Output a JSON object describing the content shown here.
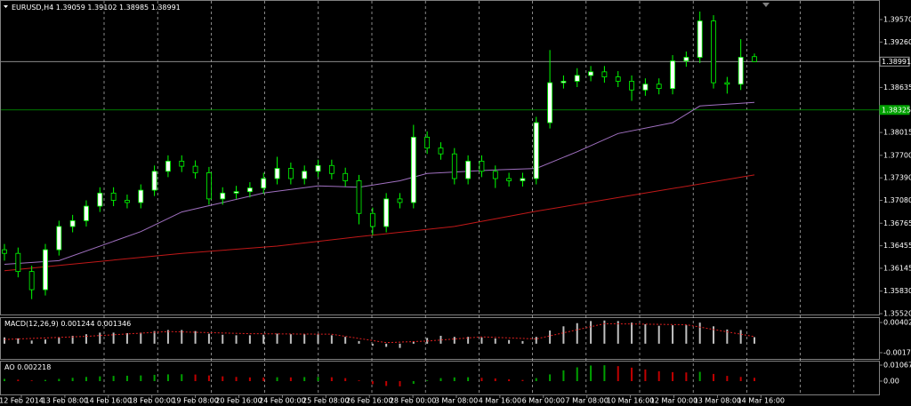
{
  "chart_data": {
    "type": "candlestick",
    "symbol": "EURUSD,H4",
    "header_values": [
      1.39059,
      1.39102,
      1.38985,
      1.38991
    ],
    "open": [
      1.364,
      1.3635,
      1.361,
      1.3585,
      1.364,
      1.3672,
      1.368,
      1.37,
      1.3718,
      1.3708,
      1.3705,
      1.3722,
      1.3748,
      1.3762,
      1.3755,
      1.3746,
      1.371,
      1.3718,
      1.372,
      1.3725,
      1.3738,
      1.3752,
      1.3738,
      1.3748,
      1.3756,
      1.3745,
      1.3735,
      1.369,
      1.3672,
      1.371,
      1.3705,
      1.3795,
      1.378,
      1.3772,
      1.3738,
      1.3762,
      1.3748,
      1.3738,
      1.3735,
      1.3738,
      1.3815,
      1.387,
      1.3872,
      1.388,
      1.3885,
      1.3878,
      1.3872,
      1.386,
      1.3868,
      1.3862,
      1.39,
      1.3905,
      1.3955,
      1.387,
      1.3868,
      1.39059
    ],
    "high": [
      1.3648,
      1.3643,
      1.3618,
      1.3648,
      1.368,
      1.3688,
      1.3708,
      1.3726,
      1.3726,
      1.3716,
      1.373,
      1.3756,
      1.377,
      1.377,
      1.3763,
      1.3754,
      1.3726,
      1.3728,
      1.3733,
      1.3746,
      1.3768,
      1.376,
      1.3756,
      1.3764,
      1.3764,
      1.3753,
      1.3743,
      1.3698,
      1.3718,
      1.3718,
      1.3812,
      1.3803,
      1.3788,
      1.378,
      1.377,
      1.377,
      1.3756,
      1.3746,
      1.3746,
      1.3823,
      1.3915,
      1.388,
      1.389,
      1.3893,
      1.3893,
      1.3886,
      1.388,
      1.3876,
      1.3876,
      1.3908,
      1.3913,
      1.3968,
      1.3963,
      1.3878,
      1.393,
      1.39102
    ],
    "low": [
      1.3625,
      1.3602,
      1.3572,
      1.3577,
      1.3632,
      1.3664,
      1.3672,
      1.3692,
      1.37,
      1.3697,
      1.3697,
      1.3714,
      1.374,
      1.3747,
      1.3738,
      1.3702,
      1.3702,
      1.371,
      1.3712,
      1.3717,
      1.373,
      1.373,
      1.373,
      1.374,
      1.3737,
      1.3727,
      1.3675,
      1.366,
      1.3664,
      1.3697,
      1.3697,
      1.3772,
      1.3764,
      1.373,
      1.373,
      1.374,
      1.3725,
      1.3727,
      1.3727,
      1.373,
      1.3807,
      1.3862,
      1.3864,
      1.3872,
      1.387,
      1.3864,
      1.3845,
      1.3852,
      1.3854,
      1.3854,
      1.3892,
      1.3897,
      1.3862,
      1.3855,
      1.386,
      1.38985
    ],
    "close": [
      1.3635,
      1.361,
      1.3585,
      1.364,
      1.3672,
      1.368,
      1.37,
      1.3718,
      1.3708,
      1.3705,
      1.3722,
      1.3748,
      1.3762,
      1.3755,
      1.3746,
      1.371,
      1.3718,
      1.372,
      1.3725,
      1.3738,
      1.3752,
      1.3738,
      1.3748,
      1.3756,
      1.3745,
      1.3735,
      1.369,
      1.3672,
      1.371,
      1.3705,
      1.3795,
      1.378,
      1.3772,
      1.3738,
      1.3762,
      1.3748,
      1.3738,
      1.3735,
      1.3738,
      1.3815,
      1.387,
      1.3872,
      1.388,
      1.3885,
      1.3878,
      1.3872,
      1.386,
      1.3868,
      1.3862,
      1.39,
      1.3905,
      1.3955,
      1.387,
      1.3868,
      1.3905,
      1.38991
    ],
    "up_color": "#ffffff",
    "down_color": "#000000",
    "wick_color": "#00ff00",
    "moving_averages": [
      {
        "color": "#a070c0",
        "x": [
          0,
          4,
          10,
          13,
          16,
          19,
          23,
          26,
          29,
          31,
          36,
          39,
          42,
          45,
          49,
          51,
          55
        ],
        "values": [
          1.362,
          1.3625,
          1.3665,
          1.3692,
          1.3705,
          1.3718,
          1.3728,
          1.3726,
          1.3735,
          1.3745,
          1.375,
          1.3752,
          1.3775,
          1.38,
          1.3815,
          1.3838,
          1.3843
        ]
      },
      {
        "color": "#c01818",
        "x": [
          0,
          13,
          20,
          26,
          33,
          39,
          47,
          55
        ],
        "values": [
          1.3611,
          1.3635,
          1.3645,
          1.3658,
          1.3672,
          1.3693,
          1.3718,
          1.3743
        ]
      }
    ],
    "price_line": {
      "value": 1.38991,
      "color": "#a0a0a0"
    },
    "level_line": {
      "value": 1.38325,
      "color": "#00a000"
    },
    "ylim": [
      1.35496,
      1.39839
    ],
    "yticks": [
      {
        "value": 1.3957,
        "label": "1.39570"
      },
      {
        "value": 1.3926,
        "label": "1.39260"
      },
      1.38635,
      1.38015,
      {
        "value": 1.377,
        "label": "1.37700"
      },
      {
        "value": 1.3739,
        "label": "1.37390"
      },
      {
        "value": 1.3708,
        "label": "1.37080"
      },
      1.36765,
      1.36455,
      1.36145,
      {
        "value": 1.3583,
        "label": "1.35830"
      },
      {
        "value": 1.3552,
        "label": "1.35520"
      }
    ],
    "x_labels": [
      "12 Feb 2014",
      "13 Feb 08:00",
      "14 Feb 16:00",
      "18 Feb 00:00",
      "19 Feb 08:00",
      "20 Feb 16:00",
      "24 Feb 00:00",
      "25 Feb 08:00",
      "26 Feb 16:00",
      "28 Feb 00:00",
      "3 Mar 08:00",
      "4 Mar 16:00",
      "6 Mar 00:00",
      "7 Mar 08:00",
      "10 Mar 16:00",
      "12 Mar 00:00",
      "13 Mar 08:00",
      "14 Mar 16:00"
    ],
    "macd": {
      "title": "MACD(12,26,9)",
      "header_values": [
        0.001244,
        0.001346
      ],
      "values": [
        0.0012,
        0.001,
        0.0006,
        0.0008,
        0.0012,
        0.0015,
        0.0018,
        0.0021,
        0.0021,
        0.002,
        0.0021,
        0.0024,
        0.0026,
        0.0026,
        0.0024,
        0.0019,
        0.0017,
        0.0016,
        0.0016,
        0.0017,
        0.0019,
        0.0018,
        0.0018,
        0.0018,
        0.0016,
        0.0013,
        0.0005,
        -0.0004,
        -0.0006,
        -0.0008,
        0.0004,
        0.0011,
        0.0015,
        0.0013,
        0.0013,
        0.0012,
        0.001,
        0.0007,
        0.0005,
        0.0013,
        0.0025,
        0.0033,
        0.0039,
        0.0043,
        0.0044,
        0.0043,
        0.004,
        0.0037,
        0.0034,
        0.0035,
        0.0035,
        0.004,
        0.0033,
        0.0027,
        0.0026,
        0.001244
      ],
      "color": "#c0c0c0",
      "signal": {
        "x": [
          0,
          6,
          12,
          18,
          24,
          28,
          31,
          35,
          39,
          44,
          50,
          55
        ],
        "values": [
          0.0008,
          0.0014,
          0.0023,
          0.0019,
          0.0018,
          0.0002,
          0.0005,
          0.0013,
          0.0009,
          0.0038,
          0.0036,
          0.001346
        ],
        "color": "#e02020"
      },
      "ylim": [
        -0.00289,
        0.005038
      ],
      "yticks": [
        0.004026,
        -0.001709
      ]
    },
    "ao": {
      "title": "AO",
      "header_values": [
        0.002218
      ],
      "values": [
        0.0015,
        0.001,
        0.0005,
        0.0008,
        0.0015,
        0.0022,
        0.0028,
        0.0032,
        0.0035,
        0.0036,
        0.0038,
        0.0042,
        0.0045,
        0.0046,
        0.0044,
        0.0038,
        0.0032,
        0.0028,
        0.0025,
        0.0024,
        0.0026,
        0.0025,
        0.0027,
        0.0028,
        0.0026,
        0.002,
        0.0005,
        -0.002,
        -0.0032,
        -0.0035,
        -0.0018,
        0.0005,
        0.002,
        0.0025,
        0.0026,
        0.0022,
        0.0018,
        0.0012,
        0.0008,
        0.002,
        0.0045,
        0.0072,
        0.0092,
        0.0104,
        0.0106,
        0.01,
        0.009,
        0.0078,
        0.0066,
        0.006,
        0.0058,
        0.0062,
        0.0048,
        0.0035,
        0.0028,
        0.002218
      ],
      "up_color": "#00a000",
      "down_color": "#c00000",
      "ylim": [
        -0.00948,
        0.01364
      ],
      "yticks": [
        0.010673,
        {
          "value": 0,
          "label": "0.00"
        }
      ]
    }
  }
}
